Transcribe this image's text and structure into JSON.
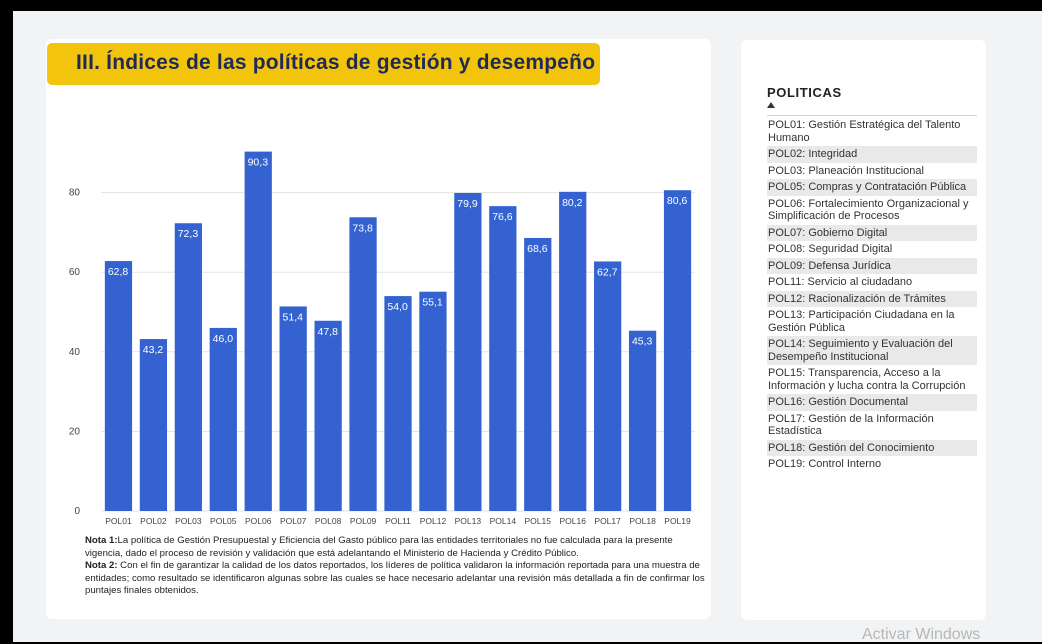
{
  "title": "III. Índices de las políticas de gestión y desempeño",
  "chart_data": {
    "type": "bar",
    "categories": [
      "POL01",
      "POL02",
      "POL03",
      "POL05",
      "POL06",
      "POL07",
      "POL08",
      "POL09",
      "POL11",
      "POL12",
      "POL13",
      "POL14",
      "POL15",
      "POL16",
      "POL17",
      "POL18",
      "POL19"
    ],
    "values": [
      62.8,
      43.2,
      72.3,
      46.0,
      90.3,
      51.4,
      47.8,
      73.8,
      54.0,
      55.1,
      79.9,
      76.6,
      68.6,
      80.2,
      62.7,
      45.3,
      80.6
    ],
    "value_labels": [
      "62,8",
      "43,2",
      "72,3",
      "46,0",
      "90,3",
      "51,4",
      "47,8",
      "73,8",
      "54,0",
      "55,1",
      "79,9",
      "76,6",
      "68,6",
      "80,2",
      "62,7",
      "45,3",
      "80,6"
    ],
    "ylim": [
      0,
      100
    ],
    "yticks": [
      0,
      20,
      40,
      60,
      80
    ],
    "grid": true,
    "bar_color": "#3463d1",
    "xlabel": "",
    "ylabel": ""
  },
  "notes": {
    "note1_label": "Nota 1:",
    "note1_text": "La política de Gestión Presupuestal y Eficiencia del Gasto público para las entidades territoriales no fue calculada para la presente vigencia, dado el proceso de revisión y validación que está adelantando el Ministerio de Hacienda y Crédito Público.",
    "note2_label": "Nota 2:",
    "note2_text": " Con el fin de garantizar la calidad de los datos reportados, los líderes de política validaron la información reportada para una muestra de entidades; como resultado se identificaron algunas sobre las cuales se hace necesario adelantar una revisión más detallada a fin de confirmar los puntajes finales obtenidos."
  },
  "legend": {
    "title": "POLITICAS",
    "sort_icon": "sort-ascending-icon",
    "items": [
      "POL01: Gestión Estratégica del Talento Humano",
      "POL02: Integridad",
      "POL03: Planeación Institucional",
      "POL05: Compras y Contratación Pública",
      "POL06: Fortalecimiento Organizacional y Simplificación de Procesos",
      "POL07: Gobierno Digital",
      "POL08: Seguridad Digital",
      "POL09: Defensa Jurídica",
      "POL11: Servicio al ciudadano",
      "POL12: Racionalización de Trámites",
      "POL13: Participación Ciudadana en la Gestión Pública",
      "POL14: Seguimiento y Evaluación del Desempeño Institucional",
      "POL15: Transparencia, Acceso a la Información y lucha contra la Corrupción",
      "POL16: Gestión Documental",
      "POL17: Gestión de la Información Estadística",
      "POL18: Gestión del Conocimiento",
      "POL19: Control Interno"
    ]
  },
  "watermark": "Activar Windows"
}
